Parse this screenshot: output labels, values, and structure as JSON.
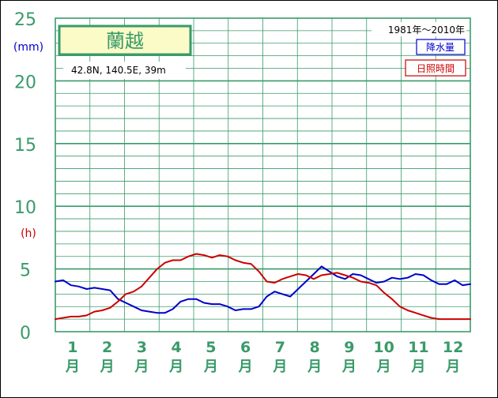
{
  "chart_data": {
    "type": "line",
    "station": "蘭越",
    "location": "42.8N,  140.5E,  39m",
    "period": "1981年〜2010年",
    "y_unit_precip": "(mm)",
    "y_unit_sun": "(h)",
    "ylim": [
      0,
      25
    ],
    "yticks": [
      0,
      5,
      10,
      15,
      20,
      25
    ],
    "grid": true,
    "legend_placement": "top-right",
    "months": [
      "1",
      "2",
      "3",
      "4",
      "5",
      "6",
      "7",
      "8",
      "9",
      "10",
      "11",
      "12"
    ],
    "month_suffix": "月",
    "series": [
      {
        "name": "降水量",
        "color": "#0000cc",
        "values": [
          4.0,
          4.1,
          3.7,
          3.6,
          3.4,
          3.5,
          3.4,
          3.3,
          2.6,
          2.3,
          2.0,
          1.7,
          1.6,
          1.5,
          1.5,
          1.8,
          2.4,
          2.6,
          2.6,
          2.3,
          2.2,
          2.2,
          2.0,
          1.7,
          1.8,
          1.8,
          2.0,
          2.8,
          3.2,
          3.0,
          2.8,
          3.4,
          4.0,
          4.6,
          5.2,
          4.8,
          4.4,
          4.2,
          4.6,
          4.5,
          4.2,
          3.9,
          4.0,
          4.3,
          4.2,
          4.3,
          4.6,
          4.5,
          4.1,
          3.8,
          3.8,
          4.1,
          3.7,
          3.8
        ]
      },
      {
        "name": "日照時間",
        "color": "#cc0000",
        "values": [
          1.0,
          1.1,
          1.2,
          1.2,
          1.3,
          1.6,
          1.7,
          1.9,
          2.4,
          3.0,
          3.2,
          3.6,
          4.3,
          5.0,
          5.5,
          5.7,
          5.7,
          6.0,
          6.2,
          6.1,
          5.9,
          6.1,
          6.0,
          5.7,
          5.5,
          5.4,
          4.8,
          4.0,
          3.9,
          4.2,
          4.4,
          4.6,
          4.5,
          4.2,
          4.5,
          4.6,
          4.7,
          4.5,
          4.3,
          4.0,
          3.9,
          3.7,
          3.1,
          2.6,
          2.0,
          1.7,
          1.5,
          1.3,
          1.1,
          1.0,
          1.0,
          1.0,
          1.0,
          1.0
        ]
      }
    ]
  }
}
